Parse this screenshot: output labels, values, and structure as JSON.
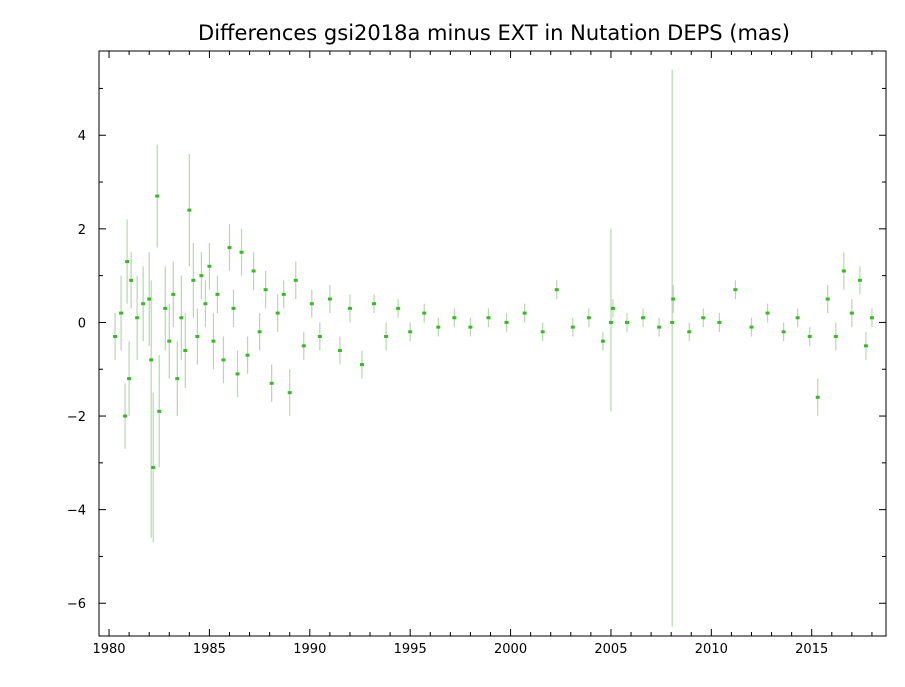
{
  "chart_data": {
    "type": "scatter",
    "title": "Differences gsi2018a minus EXT in Nutation DEPS (mas)",
    "xlabel": "",
    "ylabel": "",
    "xlim": [
      1979.5,
      2018.7
    ],
    "ylim": [
      -6.7,
      5.8
    ],
    "x_ticks": [
      1980,
      1985,
      1990,
      1995,
      2000,
      2005,
      2010,
      2015
    ],
    "y_ticks": [
      -6,
      -4,
      -2,
      0,
      2,
      4
    ],
    "x_tick_labels": [
      "1980",
      "1985",
      "1990",
      "1995",
      "2000",
      "2005",
      "2010",
      "2015"
    ],
    "y_tick_labels": [
      "−6",
      "−4",
      "−2",
      "0",
      "2",
      "4"
    ],
    "grid": false,
    "colors": {
      "points": "#3cb62a",
      "error_bars": "#b5d8ae"
    },
    "series": [
      {
        "points": [
          [
            1980.3,
            -0.3,
            0.5
          ],
          [
            1980.6,
            0.2,
            0.8
          ],
          [
            1980.8,
            -2.0,
            0.7
          ],
          [
            1980.9,
            1.3,
            0.9
          ],
          [
            1981.0,
            -1.2,
            0.8
          ],
          [
            1981.1,
            0.9,
            0.6
          ],
          [
            1981.4,
            0.1,
            0.9
          ],
          [
            1981.7,
            0.4,
            0.8
          ],
          [
            1982.0,
            0.5,
            1.0
          ],
          [
            1982.2,
            -3.1,
            1.6
          ],
          [
            1982.4,
            2.7,
            1.1
          ],
          [
            1982.5,
            -1.9,
            1.2
          ],
          [
            1982.8,
            0.3,
            0.9
          ],
          [
            1983.0,
            -0.4,
            0.8
          ],
          [
            1983.2,
            0.6,
            0.7
          ],
          [
            1983.4,
            -1.2,
            0.8
          ],
          [
            1983.6,
            0.1,
            0.9
          ],
          [
            1983.8,
            -0.6,
            0.8
          ],
          [
            1984.0,
            2.4,
            1.2
          ],
          [
            1984.2,
            0.9,
            0.8
          ],
          [
            1984.4,
            -0.3,
            0.6
          ],
          [
            1984.6,
            1.0,
            0.5
          ],
          [
            1984.8,
            0.4,
            0.5
          ],
          [
            1985.0,
            1.2,
            0.5
          ],
          [
            1985.2,
            -0.4,
            0.6
          ],
          [
            1985.4,
            0.6,
            0.4
          ],
          [
            1985.7,
            -0.8,
            0.5
          ],
          [
            1986.0,
            1.6,
            0.5
          ],
          [
            1986.2,
            0.3,
            0.4
          ],
          [
            1986.4,
            -1.1,
            0.5
          ],
          [
            1986.6,
            1.5,
            0.5
          ],
          [
            1986.9,
            -0.7,
            0.4
          ],
          [
            1987.2,
            1.1,
            0.4
          ],
          [
            1987.5,
            -0.2,
            0.4
          ],
          [
            1987.8,
            0.7,
            0.4
          ],
          [
            1988.1,
            -1.3,
            0.4
          ],
          [
            1988.4,
            0.2,
            0.4
          ],
          [
            1988.7,
            0.6,
            0.3
          ],
          [
            1989.0,
            -1.5,
            0.5
          ],
          [
            1989.3,
            0.9,
            0.4
          ],
          [
            1989.7,
            -0.5,
            0.3
          ],
          [
            1990.1,
            0.4,
            0.3
          ],
          [
            1990.5,
            -0.3,
            0.3
          ],
          [
            1991.0,
            0.5,
            0.3
          ],
          [
            1991.5,
            -0.6,
            0.3
          ],
          [
            1992.0,
            0.3,
            0.3
          ],
          [
            1992.6,
            -0.9,
            0.3
          ],
          [
            1993.2,
            0.4,
            0.2
          ],
          [
            1993.8,
            -0.3,
            0.3
          ],
          [
            1994.4,
            0.3,
            0.2
          ],
          [
            1995.0,
            -0.2,
            0.2
          ],
          [
            1995.7,
            0.2,
            0.2
          ],
          [
            1996.4,
            -0.1,
            0.2
          ],
          [
            1997.2,
            0.1,
            0.2
          ],
          [
            1998.0,
            -0.1,
            0.2
          ],
          [
            1998.9,
            0.1,
            0.2
          ],
          [
            1999.8,
            0.0,
            0.2
          ],
          [
            2000.7,
            0.2,
            0.2
          ],
          [
            2001.6,
            -0.2,
            0.2
          ],
          [
            2002.3,
            0.7,
            0.2
          ],
          [
            2003.1,
            -0.1,
            0.2
          ],
          [
            2003.9,
            0.1,
            0.2
          ],
          [
            2004.6,
            -0.4,
            0.2
          ],
          [
            2005.1,
            0.3,
            0.2
          ],
          [
            2005.8,
            0.0,
            0.2
          ],
          [
            2006.6,
            0.1,
            0.2
          ],
          [
            2007.4,
            -0.1,
            0.2
          ],
          [
            2008.1,
            0.5,
            0.3
          ],
          [
            2008.9,
            -0.2,
            0.2
          ],
          [
            2009.6,
            0.1,
            0.2
          ],
          [
            2010.4,
            0.0,
            0.2
          ],
          [
            2011.2,
            0.7,
            0.2
          ],
          [
            2012.0,
            -0.1,
            0.2
          ],
          [
            2012.8,
            0.2,
            0.2
          ],
          [
            2013.6,
            -0.2,
            0.2
          ],
          [
            2014.3,
            0.1,
            0.2
          ],
          [
            2014.9,
            -0.3,
            0.2
          ],
          [
            2015.3,
            -1.6,
            0.4
          ],
          [
            2015.8,
            0.5,
            0.3
          ],
          [
            2016.2,
            -0.3,
            0.3
          ],
          [
            2016.6,
            1.1,
            0.4
          ],
          [
            2017.0,
            0.2,
            0.3
          ],
          [
            2017.4,
            0.9,
            0.3
          ],
          [
            2017.7,
            -0.5,
            0.3
          ],
          [
            2018.0,
            0.1,
            0.2
          ]
        ],
        "point_fields": [
          "year",
          "value_mas",
          "uncertainty_mas"
        ]
      }
    ],
    "outliers": [
      {
        "x": 2008.05,
        "y": 0.0,
        "err_low": -6.5,
        "err_high": 5.4
      },
      {
        "x": 2005.0,
        "y": 0.0,
        "err_low": -1.9,
        "err_high": 2.0
      },
      {
        "x": 1982.1,
        "y": -0.8,
        "err_low": -4.6,
        "err_high": 0.9
      }
    ]
  }
}
